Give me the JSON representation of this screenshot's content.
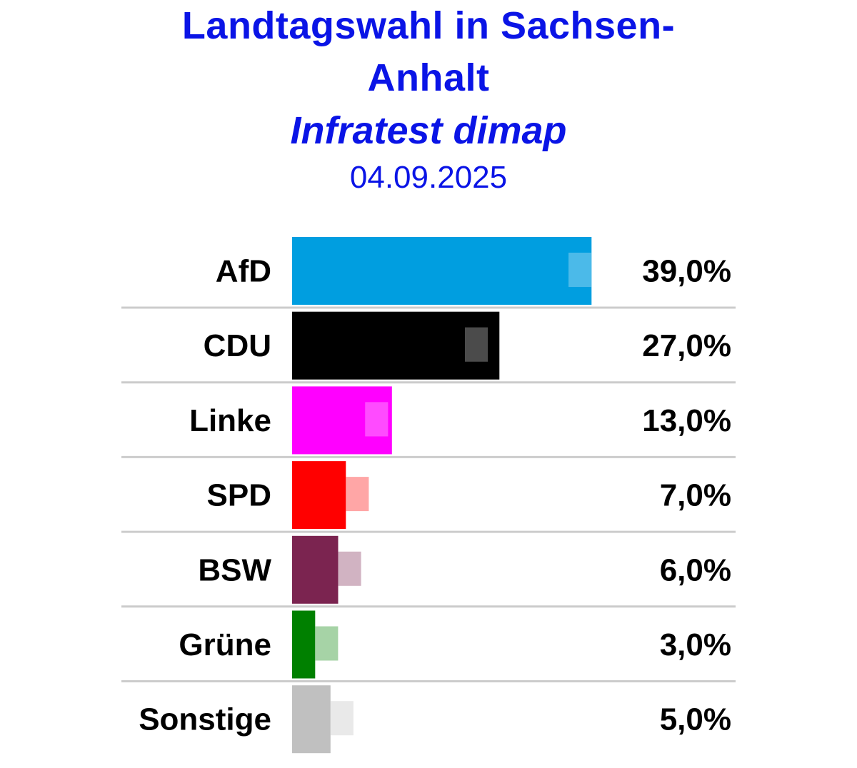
{
  "title_line1": "Landtagswahl in Sachsen-",
  "title_line2": "Anhalt",
  "subtitle": "Infratest dimap",
  "date": "04.09.2025",
  "colors": {
    "title": "#0a14e6",
    "separator": "#cccccc"
  },
  "chart_data": {
    "type": "bar",
    "orientation": "horizontal",
    "categories": [
      "AfD",
      "CDU",
      "Linke",
      "SPD",
      "BSW",
      "Grüne",
      "Sonstige"
    ],
    "values": [
      39.0,
      27.0,
      13.0,
      7.0,
      6.0,
      3.0,
      5.0
    ],
    "value_labels": [
      "39,0%",
      "27,0%",
      "13,0%",
      "7,0%",
      "6,0%",
      "3,0%",
      "5,0%"
    ],
    "colors": [
      "#009ee0",
      "#000000",
      "#ff00ff",
      "#ff0000",
      "#7b2450",
      "#008000",
      "#c0c0c0"
    ],
    "previous_poll_markers": [
      37.5,
      24.0,
      11.0,
      8.5,
      7.5,
      4.5,
      6.5
    ],
    "xlim": [
      0,
      40
    ]
  }
}
